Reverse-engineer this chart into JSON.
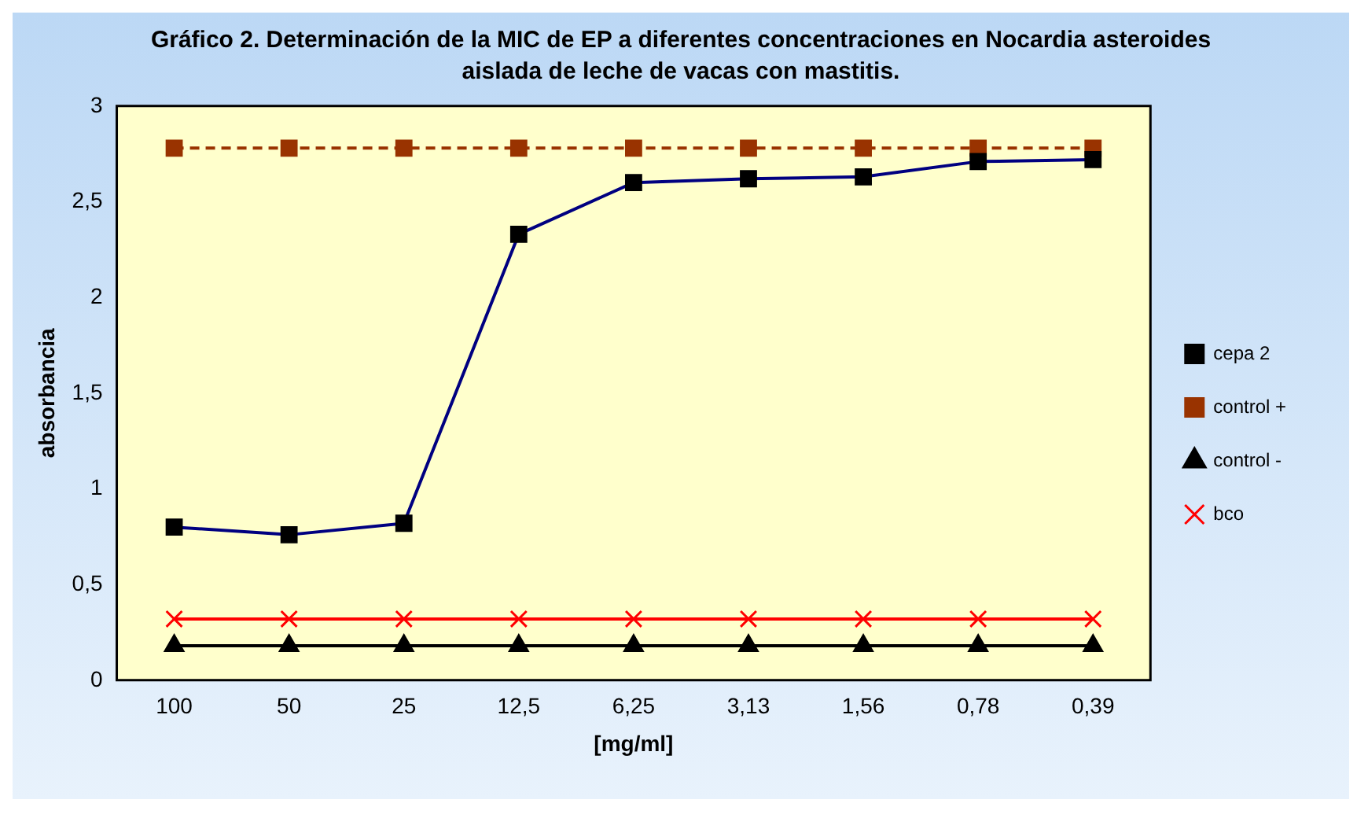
{
  "chart_data": {
    "type": "line",
    "title": "Gráfico 2. Determinación de la MIC de EP a diferentes concentraciones en Nocardia asteroides aislada de leche  de vacas con mastitis.",
    "xlabel": "[mg/ml]",
    "ylabel": "absorbancia",
    "categories": [
      "100",
      "50",
      "25",
      "12,5",
      "6,25",
      "3,13",
      "1,56",
      "0,78",
      "0,39"
    ],
    "series": [
      {
        "name": "cepa 2",
        "color": "#000080",
        "values": [
          0.8,
          0.76,
          0.82,
          2.33,
          2.6,
          2.62,
          2.63,
          2.71,
          2.72
        ],
        "marker": "square",
        "line_style": "solid"
      },
      {
        "name": "control +",
        "color": "#993300",
        "values": [
          2.78,
          2.78,
          2.78,
          2.78,
          2.78,
          2.78,
          2.78,
          2.78,
          2.78
        ],
        "marker": "square",
        "line_style": "dashed"
      },
      {
        "name": "control -",
        "color": "#000000",
        "values": [
          0.18,
          0.18,
          0.18,
          0.18,
          0.18,
          0.18,
          0.18,
          0.18,
          0.18
        ],
        "marker": "triangle",
        "line_style": "solid"
      },
      {
        "name": "bco",
        "color": "#ff0000",
        "values": [
          0.32,
          0.32,
          0.32,
          0.32,
          0.32,
          0.32,
          0.32,
          0.32,
          0.32
        ],
        "marker": "cross",
        "line_style": "solid"
      }
    ],
    "ylim": [
      0,
      3
    ],
    "yticks": [
      0,
      {
        "value": 0.5,
        "label": "0,5"
      },
      1,
      {
        "value": 1.5,
        "label": "1,5"
      },
      2,
      {
        "value": 2.5,
        "label": "2,5"
      },
      3
    ],
    "grid": false,
    "legend": "right"
  }
}
